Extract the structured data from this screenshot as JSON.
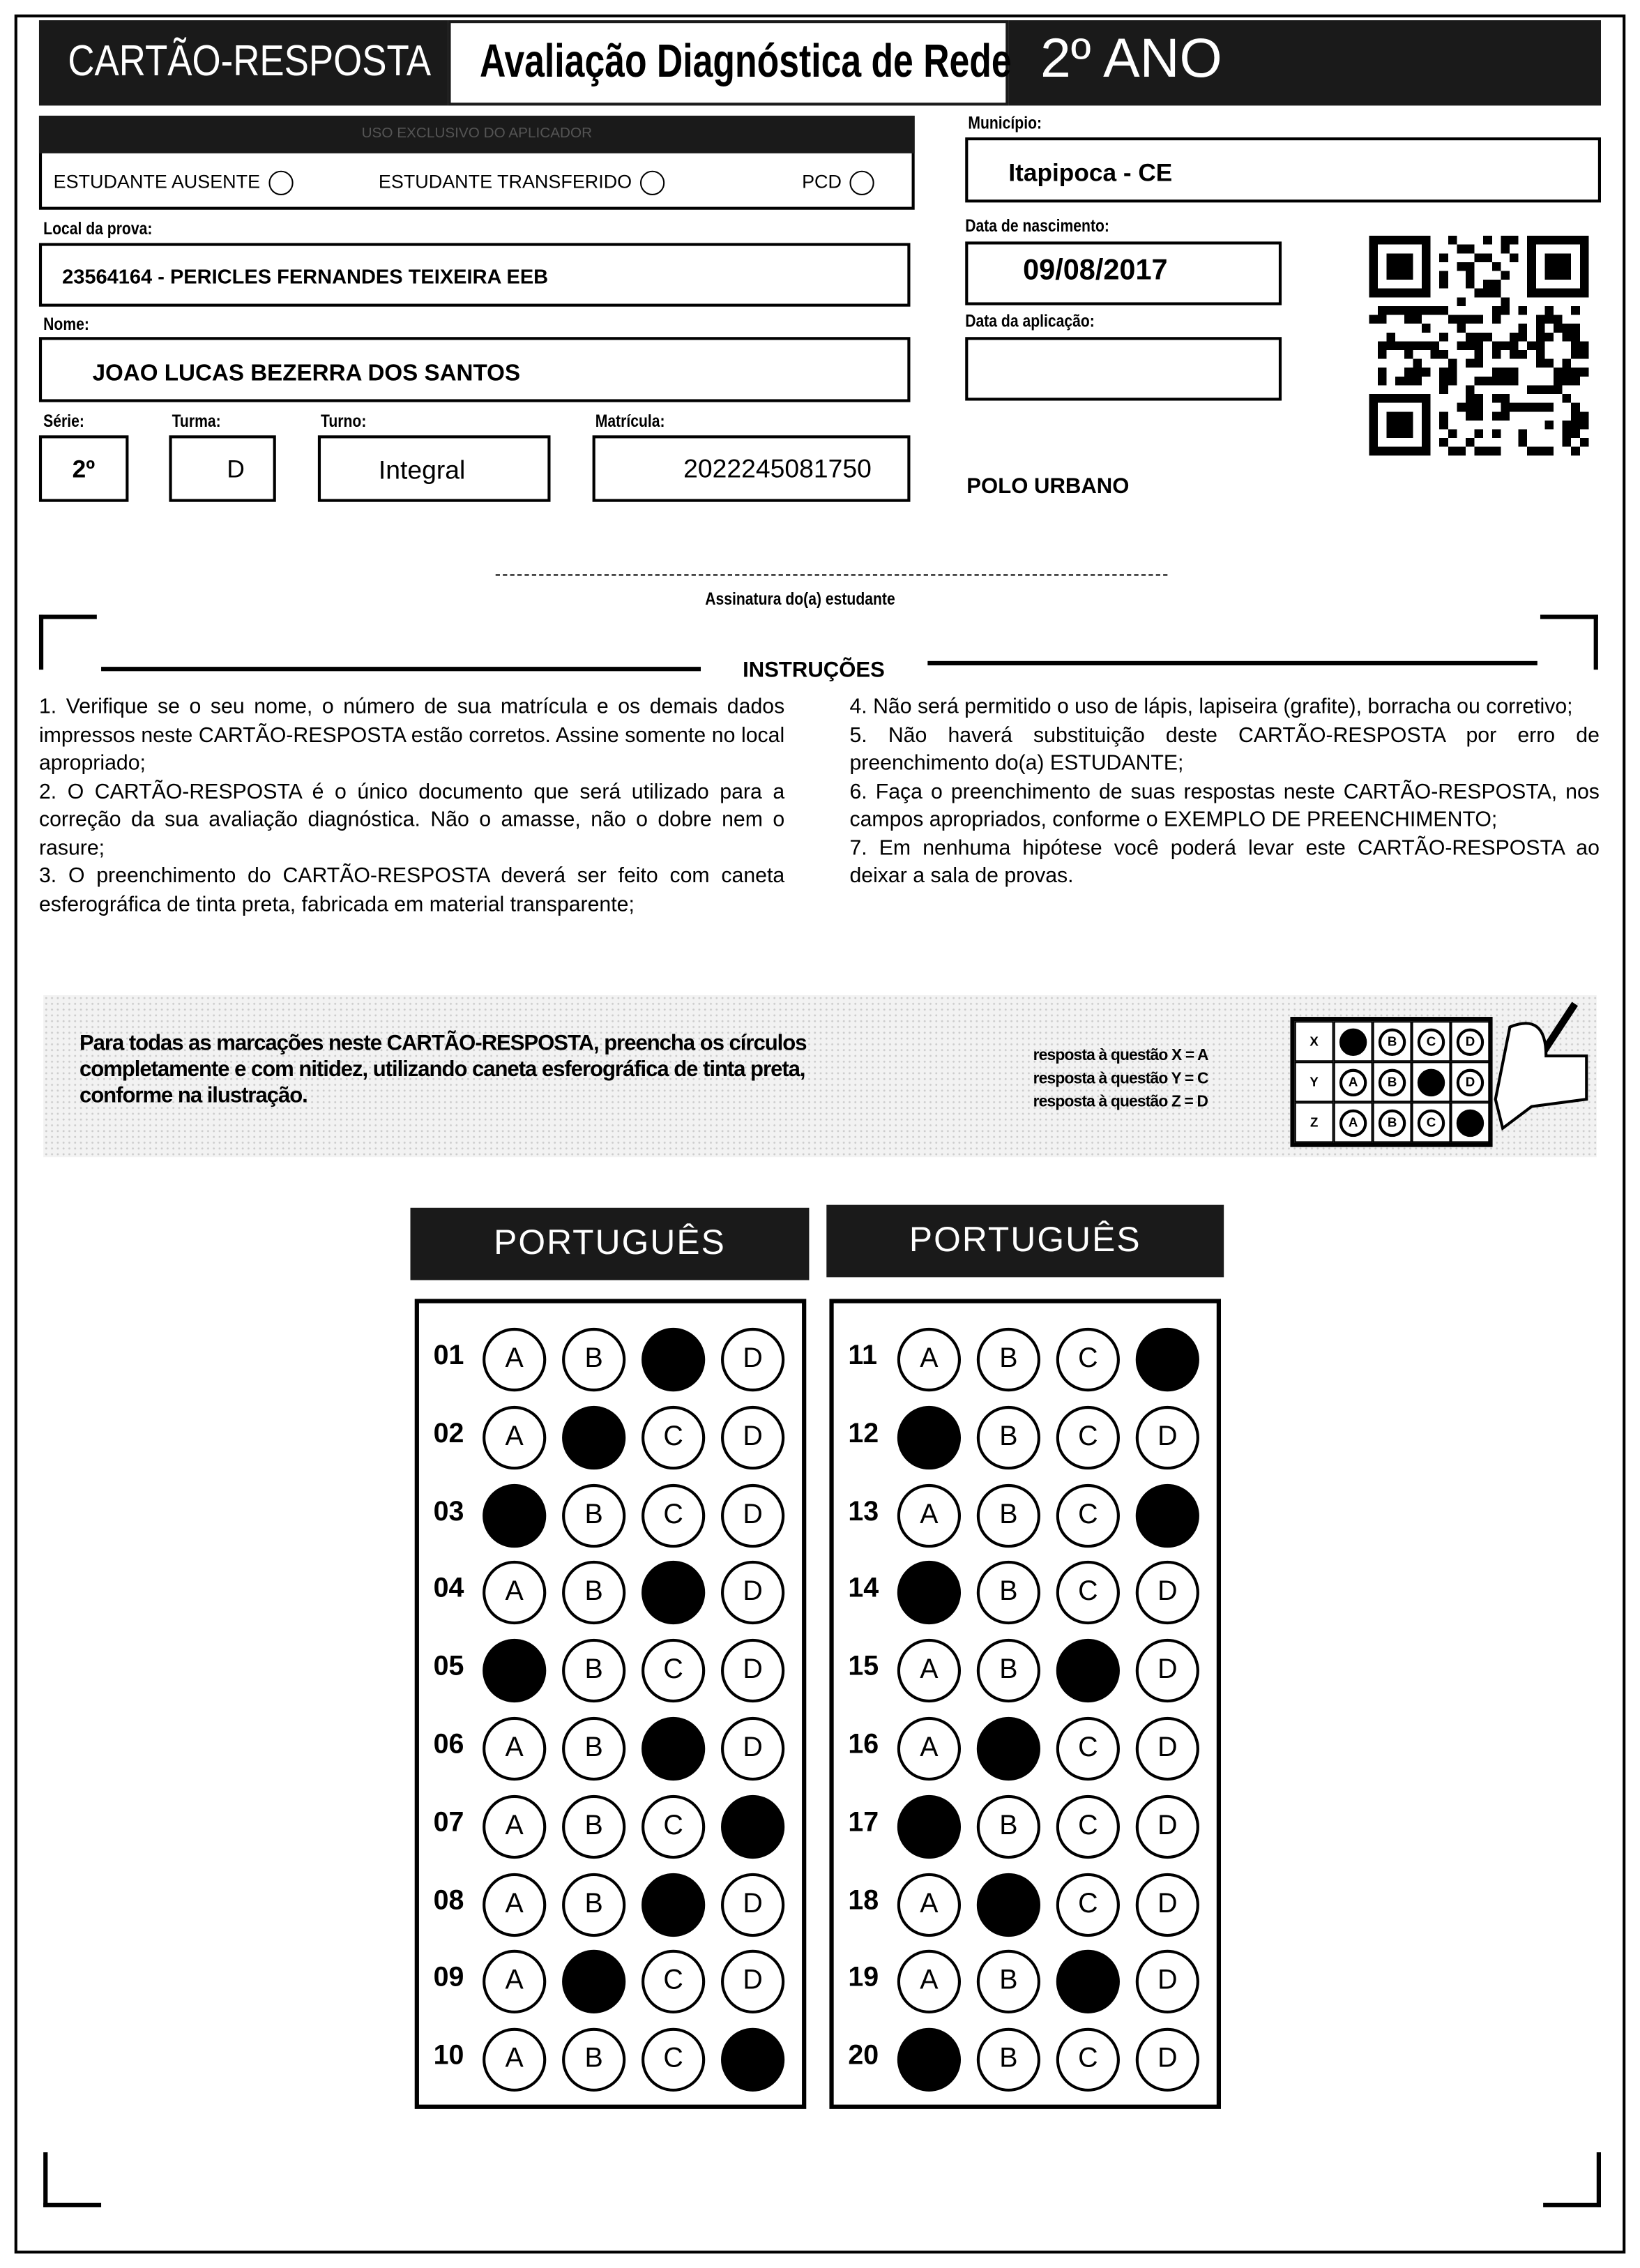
{
  "header": {
    "title": "CARTÃO-RESPOSTA",
    "subtitle": "Avaliação Diagnóstica de Rede",
    "grade": "2º ANO"
  },
  "aplicador": {
    "title": "USO EXCLUSIVO DO APLICADOR",
    "options": [
      "ESTUDANTE AUSENTE",
      "ESTUDANTE TRANSFERIDO",
      "PCD"
    ]
  },
  "fields": {
    "municipio_label": "Município:",
    "municipio": "Itapipoca - CE",
    "local_label": "Local da prova:",
    "local": "23564164 - PERICLES FERNANDES TEIXEIRA EEB",
    "nascimento_label": "Data de nascimento:",
    "nascimento": "09/08/2017",
    "nome_label": "Nome:",
    "nome": "JOAO LUCAS BEZERRA DOS SANTOS",
    "aplicacao_label": "Data da aplicação:",
    "aplicacao": "",
    "serie_label": "Série:",
    "serie": "2º",
    "turma_label": "Turma:",
    "turma": "D",
    "turno_label": "Turno:",
    "turno": "Integral",
    "matricula_label": "Matrícula:",
    "matricula": "2022245081750",
    "polo": "POLO URBANO"
  },
  "signature_label": "Assinatura do(a) estudante",
  "instructions": {
    "title": "INSTRUÇÕES",
    "left": [
      "1. Verifique se o seu nome, o número de sua matrícula e os demais dados impressos neste CARTÃO-RESPOSTA estão corretos. Assine somente no local apropriado;",
      "2. O CARTÃO-RESPOSTA é o único documento que será utilizado para a correção da sua avaliação diagnóstica. Não o amasse, não o dobre nem o rasure;",
      "3. O preenchimento do CARTÃO-RESPOSTA deverá ser feito com caneta esferográfica de tinta preta, fabricada em material transparente;"
    ],
    "right": [
      "4. Não será permitido o uso de lápis, lapiseira (grafite), borracha ou corretivo;",
      "5. Não haverá substituição deste CARTÃO-RESPOSTA por erro de preenchimento do(a) ESTUDANTE;",
      "6. Faça o preenchimento de suas respostas neste CARTÃO-RESPOSTA, nos campos apropriados, conforme o EXEMPLO DE PREENCHIMENTO;",
      "7. Em nenhuma hipótese você poderá levar este CARTÃO-RESPOSTA ao deixar a sala de provas."
    ]
  },
  "example": {
    "text": "Para todas as marcações neste CARTÃO-RESPOSTA, preencha os círculos completamente e com nitidez, utilizando caneta esferográfica de tinta preta, conforme na ilustração.",
    "legend": [
      "resposta à questão X = A",
      "resposta à questão Y = C",
      "resposta à questão Z = D"
    ],
    "rows": [
      {
        "q": "X",
        "marked": "A"
      },
      {
        "q": "Y",
        "marked": "C"
      },
      {
        "q": "Z",
        "marked": "D"
      }
    ]
  },
  "options": [
    "A",
    "B",
    "C",
    "D"
  ],
  "sections": [
    {
      "title": "PORTUGUÊS",
      "questions": [
        {
          "n": "01",
          "marked": "C"
        },
        {
          "n": "02",
          "marked": "B"
        },
        {
          "n": "03",
          "marked": "A"
        },
        {
          "n": "04",
          "marked": "C"
        },
        {
          "n": "05",
          "marked": "A"
        },
        {
          "n": "06",
          "marked": "C"
        },
        {
          "n": "07",
          "marked": "D"
        },
        {
          "n": "08",
          "marked": "C"
        },
        {
          "n": "09",
          "marked": "B"
        },
        {
          "n": "10",
          "marked": "D"
        }
      ]
    },
    {
      "title": "PORTUGUÊS",
      "questions": [
        {
          "n": "11",
          "marked": "D"
        },
        {
          "n": "12",
          "marked": "A"
        },
        {
          "n": "13",
          "marked": "D"
        },
        {
          "n": "14",
          "marked": "A"
        },
        {
          "n": "15",
          "marked": "C"
        },
        {
          "n": "16",
          "marked": "B"
        },
        {
          "n": "17",
          "marked": "A"
        },
        {
          "n": "18",
          "marked": "B"
        },
        {
          "n": "19",
          "marked": "C"
        },
        {
          "n": "20",
          "marked": "A"
        }
      ]
    }
  ]
}
